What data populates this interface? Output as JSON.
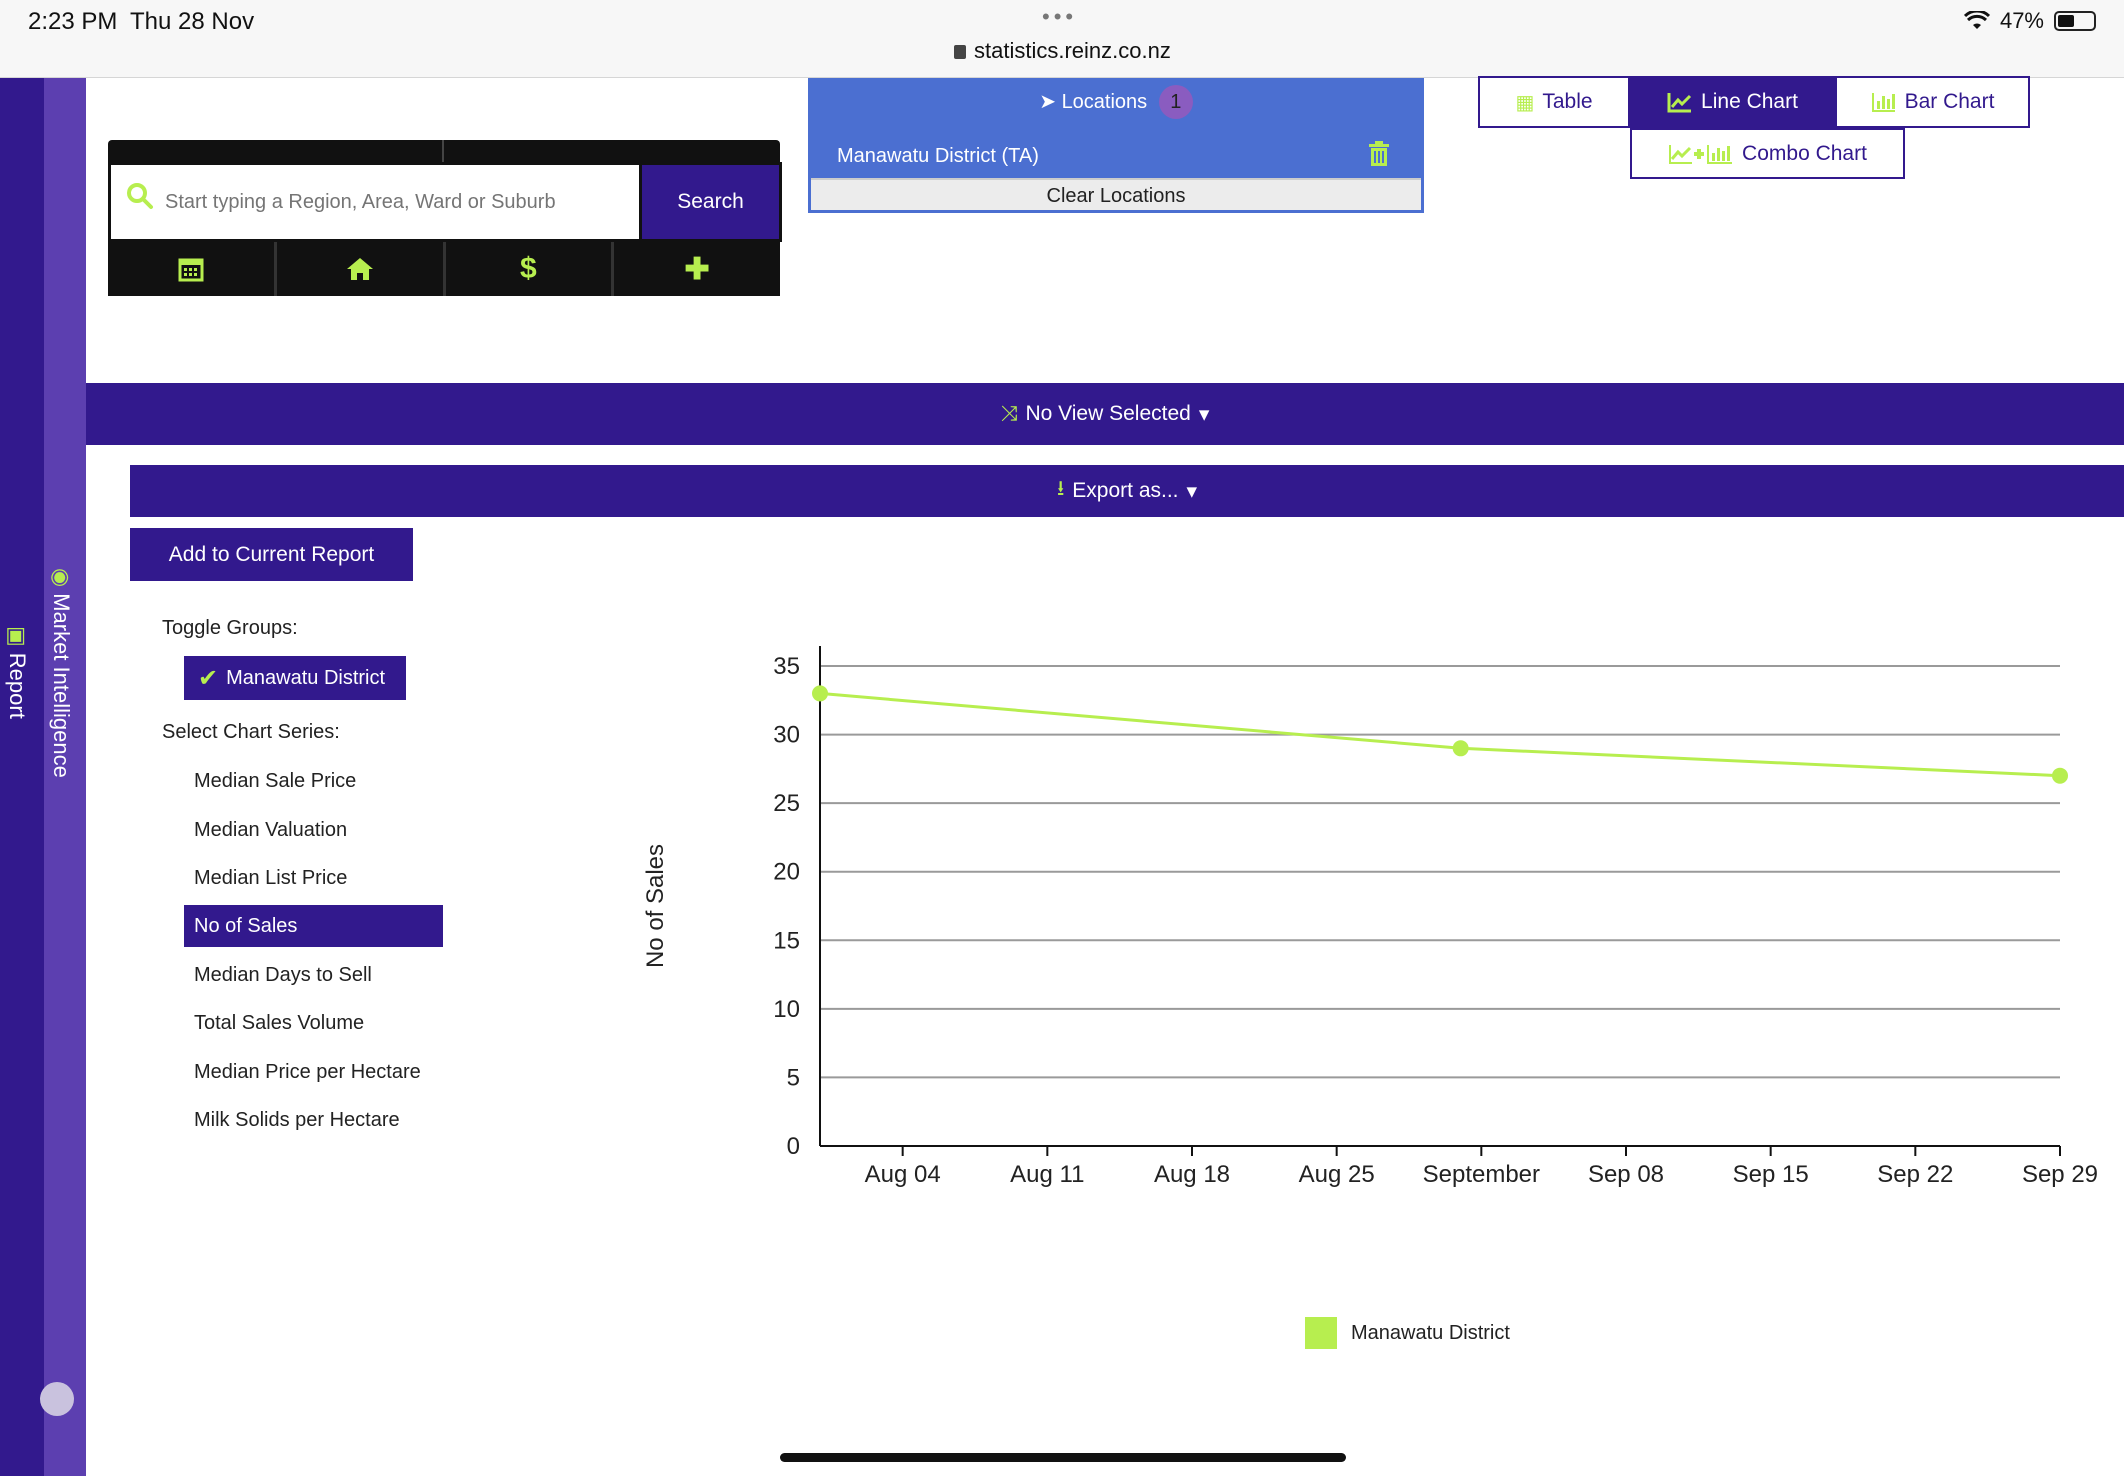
{
  "status_bar": {
    "time": "2:23 PM",
    "date": "Thu 28 Nov",
    "dots": "•••",
    "url": "statistics.reinz.co.nz",
    "battery": "47%",
    "battery_level": 0.47
  },
  "sidebar": {
    "report_label": "Report",
    "market_label": "Market Intelligence"
  },
  "search": {
    "placeholder": "Start typing a Region, Area, Ward or Suburb",
    "button_label": "Search",
    "icons": [
      "calendar-icon",
      "home-icon",
      "dollar-icon",
      "plus-icon"
    ]
  },
  "locations": {
    "title": "Locations",
    "count": "1",
    "items": [
      "Manawatu District (TA)"
    ],
    "clear_label": "Clear Locations"
  },
  "chart_types": {
    "table": "Table",
    "line": "Line Chart",
    "bar": "Bar Chart",
    "combo": "Combo Chart",
    "active": "line"
  },
  "view": {
    "label": "No View Selected"
  },
  "export": {
    "label": "Export as..."
  },
  "report": {
    "add_label": "Add to Current Report"
  },
  "panel": {
    "toggle_groups_label": "Toggle Groups:",
    "groups": [
      "Manawatu District"
    ],
    "select_series_label": "Select Chart Series:",
    "series": [
      "Median Sale Price",
      "Median Valuation",
      "Median List Price",
      "No of Sales",
      "Median Days to Sell",
      "Total Sales Volume",
      "Median Price per Hectare",
      "Milk Solids per Hectare"
    ],
    "active_series": "No of Sales"
  },
  "colors": {
    "primary": "#32198d",
    "accent": "#b7ee4f",
    "locations_bg": "#4b6fd1"
  },
  "chart_data": {
    "type": "line",
    "ylabel": "No of Sales",
    "xlabel": "",
    "ylim": [
      0,
      35
    ],
    "y_ticks": [
      0,
      5,
      10,
      15,
      20,
      25,
      30,
      35
    ],
    "x_ticks": [
      "Aug 04",
      "Aug 11",
      "Aug 18",
      "Aug 25",
      "September",
      "Sep 08",
      "Sep 15",
      "Sep 22",
      "Sep 29"
    ],
    "x_range": [
      "2019-07-31",
      "2019-09-29"
    ],
    "series": [
      {
        "name": "Manawatu District",
        "color": "#b7ee4f",
        "points": [
          {
            "x": "2019-07-31",
            "y": 33
          },
          {
            "x": "2019-08-31",
            "y": 29
          },
          {
            "x": "2019-09-29",
            "y": 27
          }
        ]
      }
    ],
    "grid": true,
    "legend_position": "bottom-center"
  }
}
